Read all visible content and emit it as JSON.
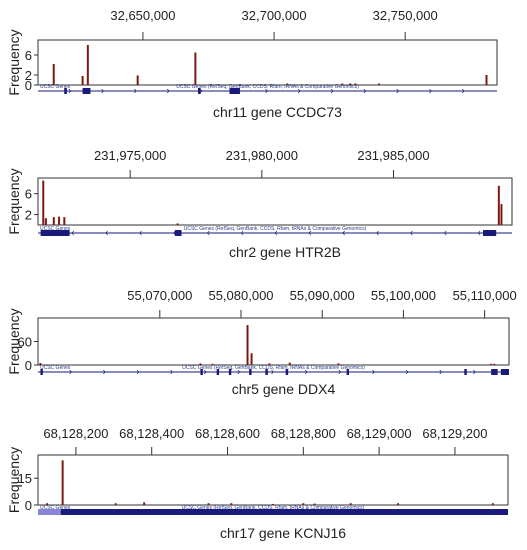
{
  "figure": {
    "ylabel": "Frequency",
    "track_text": "UCSC Genes (RefSeq, GenBank, CCDS, Rfam, tRNAs & Comparative Genomics)",
    "track_short": "UCSC Genes",
    "colors": {
      "bar": "#7a1a10",
      "gene": "#1a1a7a",
      "gene_light": "#8a86d6",
      "frame": "#333333"
    }
  },
  "chart_data": [
    {
      "type": "bar",
      "caption": "chr11 gene CCDC73",
      "ylabel": "Frequency",
      "xlim": [
        32610000,
        32785000
      ],
      "x_ticks": [
        32650000,
        32700000,
        32750000
      ],
      "x_tick_labels": [
        "32,650,000",
        "32,700,000",
        "32,750,000"
      ],
      "ylim": [
        0,
        9
      ],
      "y_ticks": [
        0,
        2,
        6
      ],
      "bars": [
        {
          "x": 32616000,
          "y": 4.2
        },
        {
          "x": 32627000,
          "y": 1.8
        },
        {
          "x": 32629000,
          "y": 8
        },
        {
          "x": 32648000,
          "y": 1.9
        },
        {
          "x": 32670000,
          "y": 6.5
        },
        {
          "x": 32705000,
          "y": 0.3
        },
        {
          "x": 32726000,
          "y": 0.3
        },
        {
          "x": 32729000,
          "y": 0.3
        },
        {
          "x": 32731000,
          "y": 0.3
        },
        {
          "x": 32740000,
          "y": 0.3
        },
        {
          "x": 32781000,
          "y": 2
        }
      ],
      "gene": {
        "start": 32620000,
        "end": 32783000,
        "direction": "plus",
        "exons": [
          [
            32620000,
            32621000
          ],
          [
            32627000,
            32630000
          ],
          [
            32671000,
            32672000
          ],
          [
            32683000,
            32687000
          ]
        ]
      }
    },
    {
      "type": "bar",
      "caption": "chr2 gene HTR2B",
      "ylabel": "Frequency",
      "xlim": [
        231971500,
        231989500
      ],
      "x_ticks": [
        231975000,
        231980000,
        231985000
      ],
      "x_tick_labels": [
        "231,975,000",
        "231,980,000",
        "231,985,000"
      ],
      "ylim": [
        0,
        9
      ],
      "y_ticks": [
        2,
        6
      ],
      "bars": [
        {
          "x": 231971700,
          "y": 8.5
        },
        {
          "x": 231971800,
          "y": 1.3
        },
        {
          "x": 231972100,
          "y": 1.5
        },
        {
          "x": 231972300,
          "y": 1.6
        },
        {
          "x": 231972500,
          "y": 1.5
        },
        {
          "x": 231976800,
          "y": 0.3
        },
        {
          "x": 231989000,
          "y": 7.5
        },
        {
          "x": 231989100,
          "y": 4
        }
      ],
      "gene": {
        "start": 231971600,
        "end": 231989900,
        "direction": "minus",
        "exons": [
          [
            231971600,
            231972700
          ],
          [
            231976700,
            231976950
          ],
          [
            231988400,
            231988900
          ]
        ]
      }
    },
    {
      "type": "bar",
      "caption": "chr5 gene DDX4",
      "ylabel": "Frequency",
      "xlim": [
        55055000,
        55113000
      ],
      "x_ticks": [
        55070000,
        55080000,
        55090000,
        55100000,
        55110000
      ],
      "x_tick_labels": [
        "55,070,000",
        "55,080,000",
        "55,090,000",
        "55,100,000",
        "55,110,000"
      ],
      "ylim": [
        0,
        120
      ],
      "y_ticks": [
        0,
        60
      ],
      "bars": [
        {
          "x": 55055300,
          "y": 5
        },
        {
          "x": 55075000,
          "y": 4
        },
        {
          "x": 55076500,
          "y": 3
        },
        {
          "x": 55080800,
          "y": 102
        },
        {
          "x": 55081300,
          "y": 30
        },
        {
          "x": 55083500,
          "y": 4
        },
        {
          "x": 55086000,
          "y": 6
        },
        {
          "x": 55092000,
          "y": 4
        },
        {
          "x": 55110800,
          "y": 3
        },
        {
          "x": 55111200,
          "y": 3
        }
      ],
      "gene": {
        "start": 55055000,
        "end": 55113000,
        "direction": "plus",
        "exons": [
          [
            55055300,
            55055600
          ],
          [
            55075000,
            55075300
          ],
          [
            55077000,
            55077300
          ],
          [
            55078500,
            55078800
          ],
          [
            55081000,
            55081300
          ],
          [
            55083000,
            55083300
          ],
          [
            55085500,
            55085800
          ],
          [
            55093000,
            55093300
          ],
          [
            55107500,
            55107800
          ],
          [
            55110800,
            55111600
          ],
          [
            55112000,
            55113000
          ]
        ]
      }
    },
    {
      "type": "bar",
      "caption": "chr17 gene KCNJ16",
      "ylabel": "Frequency",
      "xlim": [
        68128100,
        68129340
      ],
      "x_ticks": [
        68128200,
        68128400,
        68128600,
        68128800,
        68129000,
        68129200
      ],
      "x_tick_labels": [
        "68,128,200",
        "68,128,400",
        "68,128,600",
        "68,128,800",
        "68,129,000",
        "68,129,200"
      ],
      "ylim": [
        0,
        28
      ],
      "y_ticks": [
        0,
        15
      ],
      "bars": [
        {
          "x": 68128124,
          "y": 1
        },
        {
          "x": 68128165,
          "y": 25
        },
        {
          "x": 68128305,
          "y": 1
        },
        {
          "x": 68128380,
          "y": 1.5
        },
        {
          "x": 68128550,
          "y": 1
        },
        {
          "x": 68128610,
          "y": 1
        },
        {
          "x": 68128720,
          "y": 0.6
        },
        {
          "x": 68128800,
          "y": 1
        },
        {
          "x": 68128830,
          "y": 0.8
        },
        {
          "x": 68128925,
          "y": 1
        },
        {
          "x": 68129050,
          "y": 1
        },
        {
          "x": 68129300,
          "y": 1
        }
      ],
      "gene": {
        "start": 68128100,
        "end": 68129340,
        "direction": "plus",
        "utr": [
          68128100,
          68128160
        ],
        "exons": [
          [
            68128160,
            68129340
          ]
        ]
      }
    }
  ]
}
